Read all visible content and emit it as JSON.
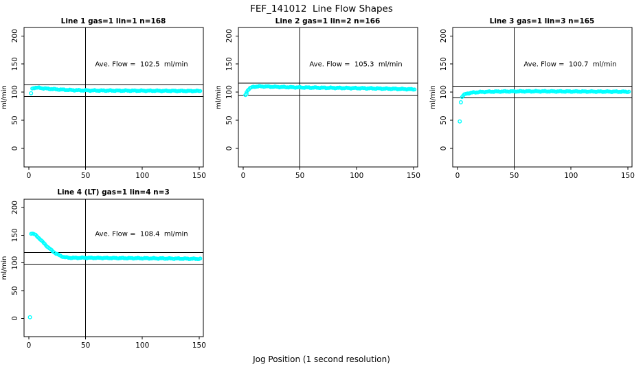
{
  "figure": {
    "title": "FEF_141012  Line Flow Shapes",
    "xlabel": "Jog Position (1 second resolution)",
    "background_color": "#FFFFFF",
    "text_color": "#000000"
  },
  "chart_data": {
    "type": "scatter",
    "marker": "open-circle",
    "marker_color": "#00FFFF",
    "axis_color": "#000000",
    "xlabel": "Jog Position (1 second resolution)",
    "ylabel": "ml/min",
    "x_ticks": [
      0,
      50,
      100,
      150
    ],
    "y_ticks": [
      0,
      50,
      100,
      150,
      200
    ],
    "xlim": [
      -4.2,
      153.7
    ],
    "ylim": [
      -33,
      215
    ],
    "grid": false,
    "legend": "none",
    "panels": [
      {
        "title": "Line 1 gas=1 lin=1 n=168",
        "annotation": "Ave. Flow =  102.5  ml/min",
        "ave_flow_ml_min": 102.5,
        "n": 168,
        "vline_x": 50,
        "ref_lines_y": [
          112.8,
          92.3
        ],
        "outliers": [
          [
            2,
            98
          ]
        ],
        "band_keypoints": [
          [
            3,
            106
          ],
          [
            4,
            107.3
          ],
          [
            6,
            108
          ],
          [
            8,
            107.8
          ],
          [
            12,
            107
          ],
          [
            16,
            106.3
          ],
          [
            20,
            105.7
          ],
          [
            25,
            105
          ],
          [
            30,
            104.4
          ],
          [
            35,
            103.9
          ],
          [
            40,
            103.5
          ],
          [
            50,
            103.1
          ],
          [
            60,
            102.9
          ],
          [
            80,
            102.7
          ],
          [
            100,
            102.6
          ],
          [
            120,
            102.4
          ],
          [
            151,
            102.1
          ]
        ]
      },
      {
        "title": "Line 2 gas=1 lin=2 n=166",
        "annotation": "Ave. Flow =  105.3  ml/min",
        "ave_flow_ml_min": 105.3,
        "n": 166,
        "vline_x": 50,
        "ref_lines_y": [
          115.8,
          94.8
        ],
        "outliers": [
          [
            2,
            95
          ],
          [
            3,
            97
          ]
        ],
        "band_keypoints": [
          [
            3,
            100
          ],
          [
            4,
            103.5
          ],
          [
            5,
            105.5
          ],
          [
            6,
            107
          ],
          [
            8,
            108.8
          ],
          [
            10,
            109.8
          ],
          [
            14,
            110.3
          ],
          [
            20,
            110.1
          ],
          [
            28,
            109.5
          ],
          [
            40,
            108.8
          ],
          [
            55,
            108.2
          ],
          [
            70,
            107.8
          ],
          [
            90,
            107.3
          ],
          [
            110,
            106.8
          ],
          [
            130,
            106.1
          ],
          [
            145,
            105.4
          ],
          [
            151,
            105
          ]
        ]
      },
      {
        "title": "Line 3 gas=1 lin=3 n=165",
        "annotation": "Ave. Flow =  100.7  ml/min",
        "ave_flow_ml_min": 100.7,
        "n": 165,
        "vline_x": 50,
        "ref_lines_y": [
          110.8,
          90.6
        ],
        "outliers": [
          [
            2,
            48
          ],
          [
            3,
            82
          ]
        ],
        "band_keypoints": [
          [
            4,
            91.5
          ],
          [
            5,
            94
          ],
          [
            6,
            95.5
          ],
          [
            8,
            97.3
          ],
          [
            10,
            98.3
          ],
          [
            14,
            99.4
          ],
          [
            20,
            100.2
          ],
          [
            28,
            100.8
          ],
          [
            40,
            101.2
          ],
          [
            60,
            101.5
          ],
          [
            80,
            101.4
          ],
          [
            100,
            101.2
          ],
          [
            125,
            101
          ],
          [
            151,
            100.7
          ]
        ]
      },
      {
        "title": "Line 4 (LT) gas=1 lin=4 n=3",
        "annotation": "Ave. Flow =  108.4  ml/min",
        "ave_flow_ml_min": 108.4,
        "n": 3,
        "vline_x": 50,
        "ref_lines_y": [
          119.2,
          97.6
        ],
        "outliers": [
          [
            1,
            2
          ]
        ],
        "band_keypoints": [
          [
            2,
            153.5
          ],
          [
            3,
            153.2
          ],
          [
            4,
            152.5
          ],
          [
            5,
            151.5
          ],
          [
            6,
            150.2
          ],
          [
            7,
            148.6
          ],
          [
            8,
            146.8
          ],
          [
            9,
            144.8
          ],
          [
            10,
            142.7
          ],
          [
            12,
            138.4
          ],
          [
            14,
            134.2
          ],
          [
            16,
            130.2
          ],
          [
            18,
            126.4
          ],
          [
            20,
            122.9
          ],
          [
            22,
            119.8
          ],
          [
            24,
            117
          ],
          [
            26,
            114.6
          ],
          [
            28,
            112.7
          ],
          [
            30,
            111.3
          ],
          [
            32,
            110.3
          ],
          [
            34,
            109.7
          ],
          [
            36,
            109.4
          ],
          [
            40,
            109.2
          ],
          [
            48,
            109.3
          ],
          [
            60,
            109.1
          ],
          [
            75,
            108.8
          ],
          [
            90,
            108.6
          ],
          [
            105,
            108.4
          ],
          [
            120,
            108.1
          ],
          [
            135,
            107.8
          ],
          [
            151,
            107.4
          ]
        ]
      }
    ]
  }
}
